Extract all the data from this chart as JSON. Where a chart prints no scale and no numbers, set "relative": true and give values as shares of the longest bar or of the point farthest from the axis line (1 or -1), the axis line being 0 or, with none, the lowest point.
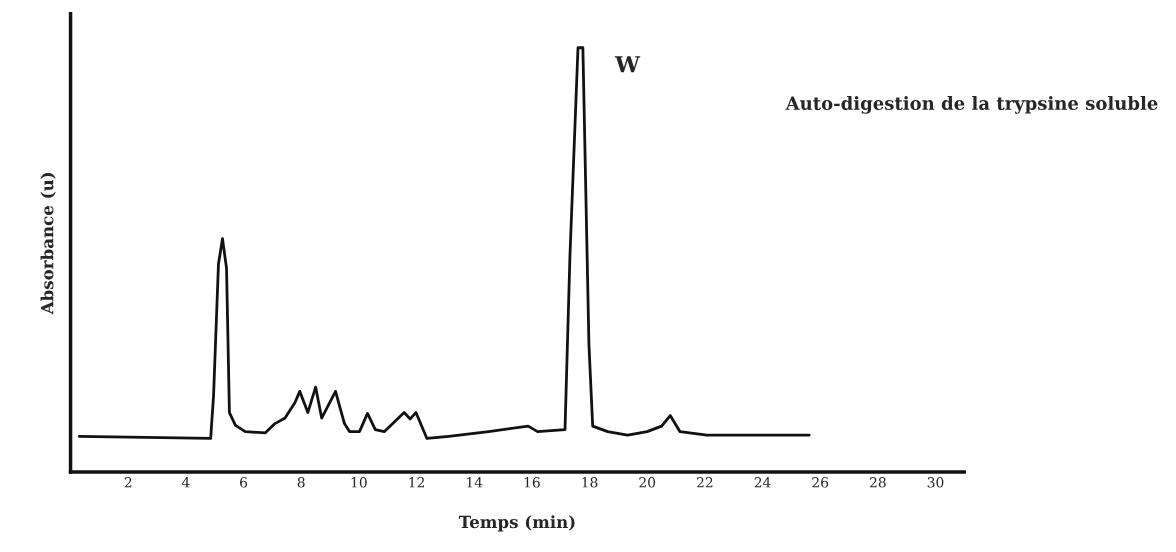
{
  "chart_data": {
    "type": "line",
    "relative": true,
    "xlabel": "Temps (min)",
    "ylabel": "Absorbance (u)",
    "annotations": [
      "W",
      "Auto-digestion de la trypsine soluble"
    ],
    "xlim": [
      0,
      31
    ],
    "xticks": [
      2,
      4,
      6,
      8,
      10,
      12,
      14,
      16,
      18,
      20,
      22,
      24,
      26,
      28,
      30
    ],
    "x": [
      0.3,
      4.86,
      4.96,
      5.13,
      5.27,
      5.41,
      5.51,
      5.72,
      6.06,
      6.75,
      7.09,
      7.44,
      7.78,
      7.95,
      8.23,
      8.5,
      8.71,
      9.19,
      9.5,
      9.68,
      10.02,
      10.3,
      10.57,
      10.88,
      11.57,
      11.78,
      11.98,
      12.36,
      13.12,
      14.5,
      15.87,
      16.2,
      17.15,
      17.32,
      17.6,
      17.77,
      17.98,
      18.11,
      18.63,
      19.32,
      20.0,
      20.5,
      20.8,
      21.14,
      22.07,
      25.62
    ],
    "series": [
      {
        "color": "#111111",
        "values": [
          0.084,
          0.079,
          0.18,
          0.49,
          0.55,
          0.48,
          0.14,
          0.11,
          0.095,
          0.092,
          0.114,
          0.127,
          0.163,
          0.19,
          0.14,
          0.2,
          0.127,
          0.19,
          0.114,
          0.095,
          0.095,
          0.138,
          0.1,
          0.095,
          0.14,
          0.125,
          0.14,
          0.079,
          0.084,
          0.095,
          0.108,
          0.095,
          0.1,
          0.507,
          1.0,
          1.0,
          0.3,
          0.108,
          0.095,
          0.087,
          0.095,
          0.108,
          0.133,
          0.095,
          0.087,
          0.087
        ]
      }
    ],
    "grid": false,
    "legend": false
  }
}
